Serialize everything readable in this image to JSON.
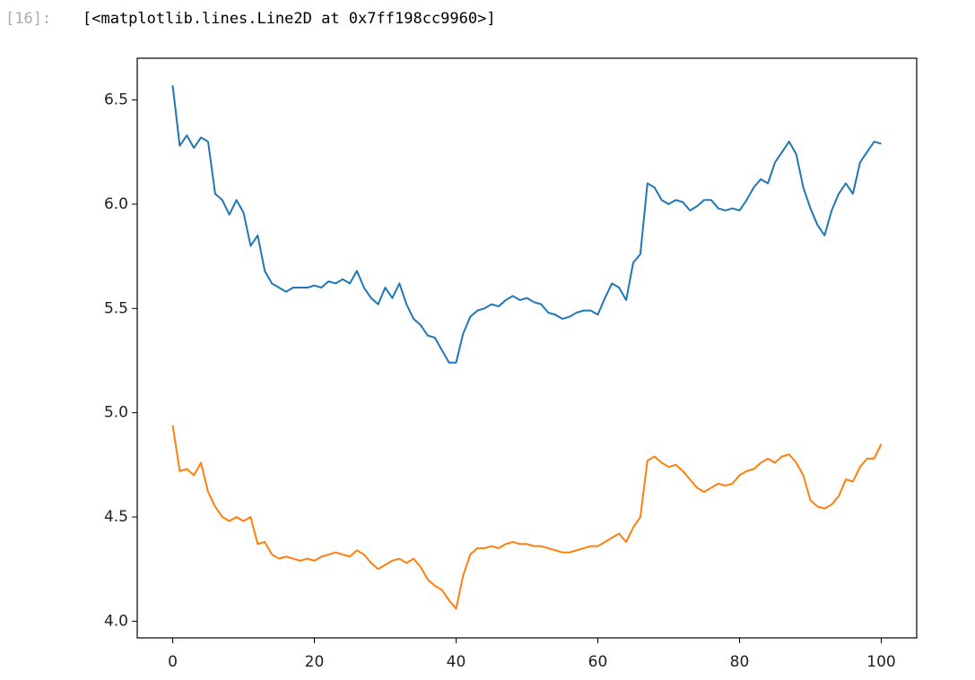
{
  "cell": {
    "prompt": "[16]:",
    "output": "[<matplotlib.lines.Line2D at 0x7ff198cc9960>]"
  },
  "chart_data": {
    "type": "line",
    "x": [
      0,
      1,
      2,
      3,
      4,
      5,
      6,
      7,
      8,
      9,
      10,
      11,
      12,
      13,
      14,
      15,
      16,
      17,
      18,
      19,
      20,
      21,
      22,
      23,
      24,
      25,
      26,
      27,
      28,
      29,
      30,
      31,
      32,
      33,
      34,
      35,
      36,
      37,
      38,
      39,
      40,
      41,
      42,
      43,
      44,
      45,
      46,
      47,
      48,
      49,
      50,
      51,
      52,
      53,
      54,
      55,
      56,
      57,
      58,
      59,
      60,
      61,
      62,
      63,
      64,
      65,
      66,
      67,
      68,
      69,
      70,
      71,
      72,
      73,
      74,
      75,
      76,
      77,
      78,
      79,
      80,
      81,
      82,
      83,
      84,
      85,
      86,
      87,
      88,
      89,
      90,
      91,
      92,
      93,
      94,
      95,
      96,
      97,
      98,
      99,
      100
    ],
    "series": [
      {
        "color": "#1f77b4",
        "values": [
          6.57,
          6.28,
          6.33,
          6.27,
          6.32,
          6.3,
          6.05,
          6.02,
          5.95,
          6.02,
          5.96,
          5.8,
          5.85,
          5.68,
          5.62,
          5.6,
          5.58,
          5.6,
          5.6,
          5.6,
          5.61,
          5.6,
          5.63,
          5.62,
          5.64,
          5.62,
          5.68,
          5.6,
          5.55,
          5.52,
          5.6,
          5.55,
          5.62,
          5.52,
          5.45,
          5.42,
          5.37,
          5.36,
          5.3,
          5.24,
          5.24,
          5.38,
          5.46,
          5.49,
          5.5,
          5.52,
          5.51,
          5.54,
          5.56,
          5.54,
          5.55,
          5.53,
          5.52,
          5.48,
          5.47,
          5.45,
          5.46,
          5.48,
          5.49,
          5.49,
          5.47,
          5.55,
          5.62,
          5.6,
          5.54,
          5.72,
          5.76,
          6.1,
          6.08,
          6.02,
          6.0,
          6.02,
          6.01,
          5.97,
          5.99,
          6.02,
          6.02,
          5.98,
          5.97,
          5.98,
          5.97,
          6.02,
          6.08,
          6.12,
          6.1,
          6.2,
          6.25,
          6.3,
          6.24,
          6.08,
          5.98,
          5.9,
          5.85,
          5.97,
          6.05,
          6.1,
          6.05,
          6.2,
          6.25,
          6.3,
          6.29
        ]
      },
      {
        "color": "#ff7f0e",
        "values": [
          4.94,
          4.72,
          4.73,
          4.7,
          4.76,
          4.62,
          4.55,
          4.5,
          4.48,
          4.5,
          4.48,
          4.5,
          4.37,
          4.38,
          4.32,
          4.3,
          4.31,
          4.3,
          4.29,
          4.3,
          4.29,
          4.31,
          4.32,
          4.33,
          4.32,
          4.31,
          4.34,
          4.32,
          4.28,
          4.25,
          4.27,
          4.29,
          4.3,
          4.28,
          4.3,
          4.26,
          4.2,
          4.17,
          4.15,
          4.1,
          4.06,
          4.22,
          4.32,
          4.35,
          4.35,
          4.36,
          4.35,
          4.37,
          4.38,
          4.37,
          4.37,
          4.36,
          4.36,
          4.35,
          4.34,
          4.33,
          4.33,
          4.34,
          4.35,
          4.36,
          4.36,
          4.38,
          4.4,
          4.42,
          4.38,
          4.45,
          4.5,
          4.77,
          4.79,
          4.76,
          4.74,
          4.75,
          4.72,
          4.68,
          4.64,
          4.62,
          4.64,
          4.66,
          4.65,
          4.66,
          4.7,
          4.72,
          4.73,
          4.76,
          4.78,
          4.76,
          4.79,
          4.8,
          4.76,
          4.7,
          4.58,
          4.55,
          4.54,
          4.56,
          4.6,
          4.68,
          4.67,
          4.74,
          4.78,
          4.78,
          4.85
        ]
      }
    ],
    "xlim": [
      -5,
      105
    ],
    "ylim": [
      3.92,
      6.7
    ],
    "xticks": [
      0,
      20,
      40,
      60,
      80,
      100
    ],
    "yticks": [
      {
        "value": 4,
        "label": "4.0"
      },
      4.5,
      {
        "value": 5,
        "label": "5.0"
      },
      5.5,
      {
        "value": 6,
        "label": "6.0"
      },
      6.5
    ]
  }
}
